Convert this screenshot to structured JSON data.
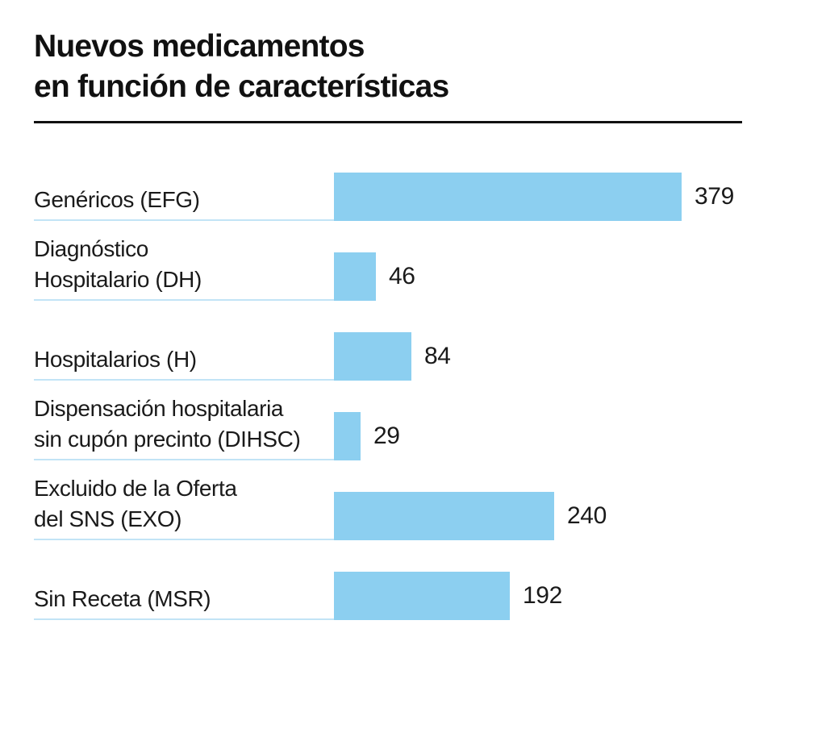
{
  "title": {
    "line1": "Nuevos medicamentos",
    "line2": "en función de características"
  },
  "chart_data": {
    "type": "bar",
    "orientation": "horizontal",
    "title": "Nuevos medicamentos en función de características",
    "categories": [
      "Genéricos (EFG)",
      "Diagnóstico Hospitalario (DH)",
      "Hospitalarios (H)",
      "Dispensación hospitalaria sin cupón precinto (DIHSC)",
      "Excluido de la Oferta del SNS (EXO)",
      "Sin Receta (MSR)"
    ],
    "label_lines": [
      [
        "Genéricos (EFG)"
      ],
      [
        "Diagnóstico",
        "Hospitalario (DH)"
      ],
      [
        "Hospitalarios (H)"
      ],
      [
        "Dispensación hospitalaria",
        "sin cupón precinto (DIHSC)"
      ],
      [
        "Excluido de la Oferta",
        "del SNS (EXO)"
      ],
      [
        "Sin Receta (MSR)"
      ]
    ],
    "values": [
      379,
      46,
      84,
      29,
      240,
      192
    ],
    "xlim": [
      0,
      379
    ],
    "value_labels_shown": true,
    "grid": false,
    "legend": false,
    "xlabel": "",
    "ylabel": "",
    "colors": {
      "bar": "#8CCFF0",
      "baseline": "#C2E4F6",
      "text": "#1A1A1A",
      "title_rule": "#111111",
      "background": "#FFFFFF"
    }
  }
}
